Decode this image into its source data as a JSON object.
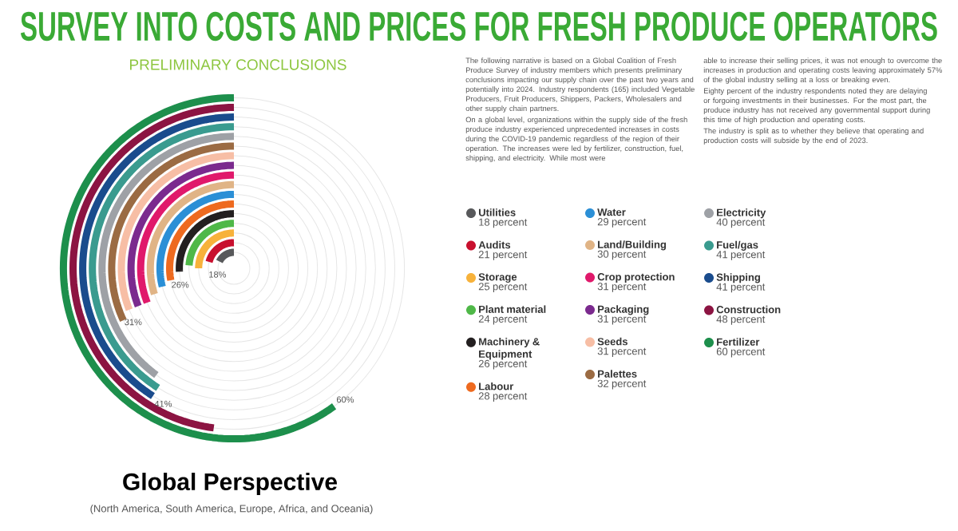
{
  "chart_data": {
    "type": "other",
    "title": "SURVEY INTO COSTS AND PRICES FOR FRESH PRODUCE OPERATORS",
    "subtitle": "PRELIMINARY CONCLUSIONS",
    "categories": [
      "Utilities",
      "Audits",
      "Storage",
      "Plant material",
      "Machinery & Equipment",
      "Labour",
      "Water",
      "Land/Building",
      "Crop protection",
      "Packaging",
      "Seeds",
      "Palettes",
      "Electricity",
      "Fuel/gas",
      "Shipping",
      "Construction",
      "Fertilizer"
    ],
    "values": [
      18,
      21,
      25,
      24,
      26,
      28,
      29,
      30,
      31,
      31,
      31,
      32,
      40,
      41,
      41,
      48,
      60
    ],
    "colors": [
      "#58595b",
      "#c8102e",
      "#f7b23b",
      "#4fb848",
      "#231f20",
      "#ee6a1f",
      "#2b8fd6",
      "#e0b486",
      "#e0196b",
      "#7b2a8e",
      "#f7bea5",
      "#9b6b43",
      "#9ea1a6",
      "#3a9b8f",
      "#1a4c8d",
      "#8c1442",
      "#1d8f4c"
    ],
    "value_labels": [
      "18 percent",
      "21 percent",
      "25 percent",
      "24 percent",
      "26 percent",
      "28 percent",
      "29 percent",
      "30 percent",
      "31 percent",
      "31 percent",
      "31 percent",
      "32 percent",
      "40 percent",
      "41 percent",
      "41 percent",
      "48 percent",
      "60 percent"
    ],
    "annotations": [
      "The following narrative is based on a Global Coalition of Fresh Produce Survey of industry members which presents preliminary conclusions impacting our supply chain over the past two years and potentially into 2024. Industry respondents (165) included Vegetable Producers, Fruit Producers, Shippers, Packers, Wholesalers and other supply chain partners.",
      "On a global level, organizations within the supply side of the fresh produce industry experienced unprecedented increases in costs during the COVID-19 pandemic regardless of the region of their operation. The increases were led by fertilizer, construction, fuel, shipping, and electricity. While most were",
      "able to increase their selling prices, it was not enough to overcome the increases in production and operating costs leaving approximately 57% of the global industry selling at a loss or breaking even.",
      "Eighty percent of the industry respondents noted they are delaying or forgoing investments in their businesses. For the most part, the produce industry has not received any governmental support during this time of high production and operating costs.",
      "The industry is split as to whether they believe that operating and production costs will subside by the end of 2023.",
      "Global Perspective",
      "(North America, South America, Europe, Africa, and Oceania)",
      "18%",
      "26%",
      "31%",
      "41%",
      "60%"
    ]
  }
}
